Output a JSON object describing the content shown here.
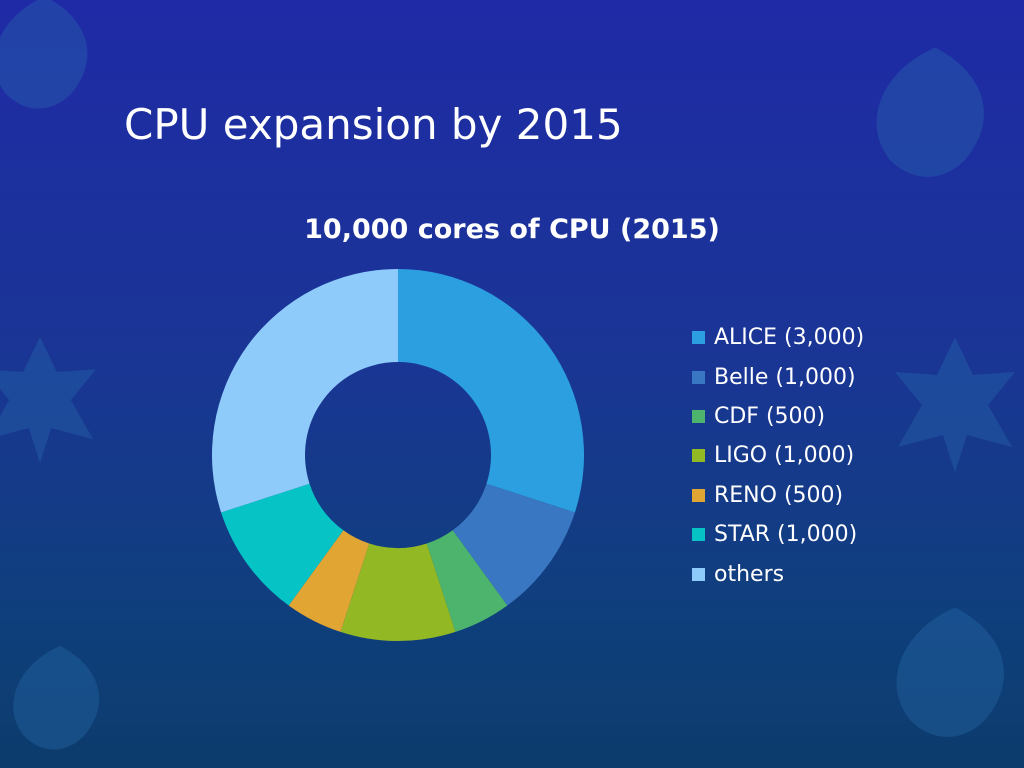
{
  "slide": {
    "title": "CPU expansion by 2015"
  },
  "chart_data": {
    "type": "pie",
    "title": "10,000 cores of CPU (2015)",
    "categories": [
      "ALICE (3,000)",
      "Belle (1,000)",
      "CDF (500)",
      "LIGO (1,000)",
      "RENO (500)",
      "STAR (1,000)",
      "others"
    ],
    "values": [
      3000,
      1000,
      500,
      1000,
      500,
      1000,
      3000
    ],
    "colors": [
      "#2b9fdf",
      "#3a77c2",
      "#4db46d",
      "#92b824",
      "#e0a533",
      "#06c3c6",
      "#8ecbfb"
    ],
    "legend_position": "right"
  }
}
